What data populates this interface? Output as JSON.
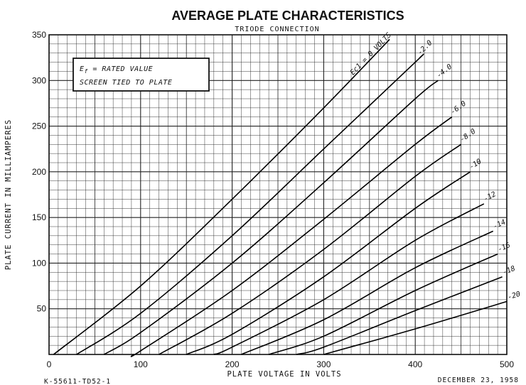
{
  "chart_data": {
    "type": "line",
    "title": "AVERAGE PLATE CHARACTERISTICS",
    "subtitle": "TRIODE CONNECTION",
    "xlabel": "PLATE VOLTAGE IN VOLTS",
    "ylabel": "PLATE CURRENT IN MILLIAMPERES",
    "xlim": [
      0,
      500
    ],
    "ylim": [
      0,
      350
    ],
    "xticks": [
      0,
      100,
      200,
      300,
      400,
      500
    ],
    "yticks": [
      50,
      100,
      150,
      200,
      250,
      300,
      350
    ],
    "grid": true,
    "note": {
      "line1_prefix": "E",
      "line1_sub": "f",
      "line1_rest": " = RATED VALUE",
      "line2": "SCREEN TIED TO PLATE"
    },
    "footer_left": "K-55611-TD52-1",
    "footer_right": "DECEMBER 23, 1958",
    "series": [
      {
        "label": "Ec1 = 0 VOLTS",
        "start": 5,
        "points": [
          [
            5,
            0
          ],
          [
            100,
            75
          ],
          [
            200,
            170
          ],
          [
            300,
            270
          ],
          [
            372,
            345
          ]
        ]
      },
      {
        "label": "-2.0",
        "start": 30,
        "points": [
          [
            30,
            0
          ],
          [
            100,
            45
          ],
          [
            200,
            130
          ],
          [
            300,
            225
          ],
          [
            400,
            320
          ],
          [
            405,
            325
          ]
        ]
      },
      {
        "label": "-4.0",
        "start": 60,
        "points": [
          [
            60,
            0
          ],
          [
            100,
            24
          ],
          [
            200,
            100
          ],
          [
            300,
            188
          ],
          [
            400,
            280
          ],
          [
            425,
            300
          ]
        ]
      },
      {
        "label": "-6.0",
        "start": 92,
        "points": [
          [
            92,
            0
          ],
          [
            100,
            4
          ],
          [
            200,
            70
          ],
          [
            300,
            148
          ],
          [
            400,
            230
          ],
          [
            440,
            260
          ]
        ]
      },
      {
        "label": "-8.0",
        "start": 120,
        "points": [
          [
            120,
            0
          ],
          [
            200,
            45
          ],
          [
            300,
            115
          ],
          [
            400,
            195
          ],
          [
            450,
            230
          ]
        ]
      },
      {
        "label": "-10",
        "start": 150,
        "points": [
          [
            150,
            0
          ],
          [
            200,
            22
          ],
          [
            300,
            85
          ],
          [
            400,
            160
          ],
          [
            460,
            200
          ]
        ]
      },
      {
        "label": "-12",
        "start": 180,
        "points": [
          [
            180,
            0
          ],
          [
            200,
            8
          ],
          [
            300,
            60
          ],
          [
            400,
            125
          ],
          [
            475,
            165
          ]
        ]
      },
      {
        "label": "-14",
        "start": 210,
        "points": [
          [
            210,
            0
          ],
          [
            300,
            38
          ],
          [
            400,
            95
          ],
          [
            485,
            135
          ]
        ]
      },
      {
        "label": "-16",
        "start": 240,
        "points": [
          [
            240,
            0
          ],
          [
            300,
            20
          ],
          [
            400,
            70
          ],
          [
            490,
            110
          ]
        ]
      },
      {
        "label": "-18",
        "start": 270,
        "points": [
          [
            270,
            0
          ],
          [
            300,
            8
          ],
          [
            400,
            48
          ],
          [
            495,
            85
          ]
        ]
      },
      {
        "label": "-20",
        "start": 300,
        "points": [
          [
            300,
            0
          ],
          [
            400,
            28
          ],
          [
            500,
            58
          ]
        ]
      }
    ]
  }
}
